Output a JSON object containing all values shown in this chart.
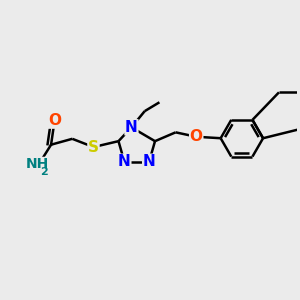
{
  "bg_color": "#ebebeb",
  "bond_color": "#000000",
  "bond_width": 1.8,
  "atom_colors": {
    "N": "#0000ff",
    "O": "#ff4400",
    "S": "#cccc00",
    "C": "#000000",
    "NH2": "#008080"
  },
  "font_size": 10
}
